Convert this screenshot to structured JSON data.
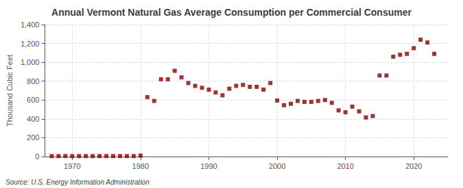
{
  "chart_data": {
    "type": "scatter",
    "title": "Annual Vermont Natural Gas Average Consumption per Commercial Consumer",
    "ylabel": "Thousand Cubic Feet",
    "annotation": "Source: U.S. Energy Information Administration",
    "x": [
      1967,
      1968,
      1969,
      1970,
      1971,
      1972,
      1973,
      1974,
      1975,
      1976,
      1977,
      1978,
      1979,
      1980,
      1981,
      1982,
      1983,
      1984,
      1985,
      1986,
      1987,
      1988,
      1989,
      1990,
      1991,
      1992,
      1993,
      1994,
      1995,
      1996,
      1997,
      1998,
      1999,
      2000,
      2001,
      2002,
      2003,
      2004,
      2005,
      2006,
      2007,
      2008,
      2009,
      2010,
      2011,
      2012,
      2013,
      2014,
      2015,
      2016,
      2017,
      2018,
      2019,
      2020,
      2021,
      2022,
      2023
    ],
    "values": [
      5,
      5,
      5,
      5,
      5,
      5,
      5,
      5,
      5,
      5,
      5,
      5,
      5,
      10,
      630,
      590,
      820,
      820,
      910,
      840,
      780,
      750,
      730,
      710,
      680,
      650,
      720,
      750,
      760,
      740,
      740,
      710,
      780,
      595,
      545,
      560,
      590,
      580,
      580,
      590,
      600,
      570,
      490,
      470,
      530,
      480,
      415,
      430,
      860,
      860,
      1060,
      1080,
      1090,
      1150,
      1240,
      1210,
      1090
    ],
    "color": "#8b0000",
    "marker": "square",
    "xlim": [
      1966,
      2025
    ],
    "xticks": [
      1970,
      1980,
      1990,
      2000,
      2010,
      2020
    ],
    "ylim": [
      0,
      1400
    ],
    "yticks": [
      0,
      200,
      400,
      600,
      800,
      {
        "value": 1000,
        "label": "1,000"
      },
      {
        "value": 1200,
        "label": "1,200"
      },
      {
        "value": 1400,
        "label": "1,400"
      }
    ],
    "grid": true
  }
}
